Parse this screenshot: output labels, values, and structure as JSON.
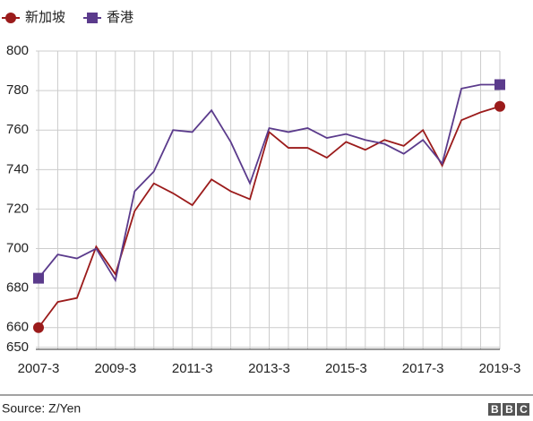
{
  "chart_data": {
    "type": "line",
    "categories": [
      "2007-3",
      null,
      null,
      null,
      "2009-3",
      null,
      null,
      null,
      "2011-3",
      null,
      null,
      null,
      "2013-3",
      null,
      null,
      null,
      "2015-3",
      null,
      null,
      null,
      "2017-3",
      null,
      null,
      null,
      "2019-3"
    ],
    "series": [
      {
        "name": "新加坡",
        "color": "#9b1b1b",
        "marker": "circle",
        "values": [
          660,
          673,
          675,
          701,
          687,
          719,
          733,
          728,
          722,
          735,
          729,
          725,
          759,
          751,
          751,
          746,
          754,
          750,
          755,
          752,
          760,
          742,
          765,
          769,
          772
        ]
      },
      {
        "name": "香港",
        "color": "#5b3b8c",
        "marker": "square",
        "values": [
          685,
          697,
          695,
          700,
          684,
          729,
          739,
          760,
          759,
          770,
          754,
          733,
          761,
          759,
          761,
          756,
          758,
          755,
          753,
          748,
          755,
          743,
          781,
          783,
          783
        ]
      }
    ],
    "ylim": [
      649,
      800
    ],
    "yticks": [
      650,
      660,
      680,
      700,
      720,
      740,
      760,
      780,
      800
    ],
    "grid": true,
    "legend": "top-left",
    "source": "Source: Z/Yen",
    "logo": "BBC"
  }
}
